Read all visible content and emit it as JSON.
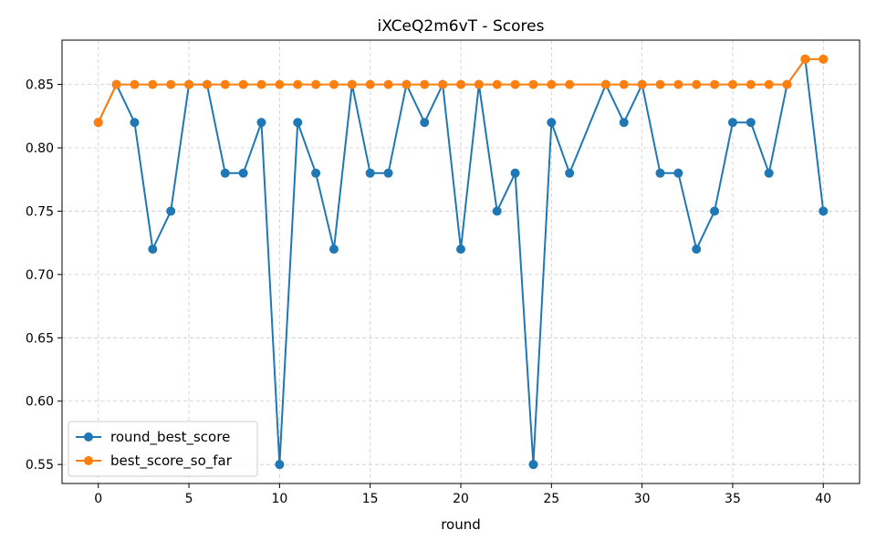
{
  "chart_data": {
    "type": "line",
    "title": "iXCeQ2m6vT - Scores",
    "xlabel": "round",
    "ylabel": "",
    "xlim": [
      -2,
      42
    ],
    "ylim": [
      0.535,
      0.885
    ],
    "xticks": [
      0,
      5,
      10,
      15,
      20,
      25,
      30,
      35,
      40
    ],
    "yticks": [
      0.55,
      0.6,
      0.65,
      0.7,
      0.75,
      0.8,
      0.85
    ],
    "xtick_labels": [
      "0",
      "5",
      "10",
      "15",
      "20",
      "25",
      "30",
      "35",
      "40"
    ],
    "ytick_labels": [
      "0.55",
      "0.60",
      "0.65",
      "0.70",
      "0.75",
      "0.80",
      "0.85"
    ],
    "grid": true,
    "legend_position": "lower-left",
    "series": [
      {
        "name": "round_best_score",
        "color": "#1f77b4",
        "marker": "circle",
        "x": [
          0,
          1,
          2,
          3,
          4,
          5,
          6,
          7,
          8,
          9,
          10,
          11,
          12,
          13,
          14,
          15,
          16,
          17,
          18,
          19,
          20,
          21,
          22,
          23,
          24,
          25,
          26,
          28,
          29,
          30,
          31,
          32,
          33,
          34,
          35,
          36,
          37,
          38,
          39,
          40
        ],
        "y": [
          0.82,
          0.85,
          0.82,
          0.72,
          0.75,
          0.85,
          0.85,
          0.78,
          0.78,
          0.82,
          0.55,
          0.82,
          0.78,
          0.72,
          0.85,
          0.78,
          0.78,
          0.85,
          0.82,
          0.85,
          0.72,
          0.85,
          0.75,
          0.78,
          0.55,
          0.82,
          0.78,
          0.85,
          0.82,
          0.85,
          0.78,
          0.78,
          0.72,
          0.75,
          0.82,
          0.82,
          0.78,
          0.85,
          0.87,
          0.75
        ]
      },
      {
        "name": "best_score_so_far",
        "color": "#ff7f0e",
        "marker": "circle",
        "x": [
          0,
          1,
          2,
          3,
          4,
          5,
          6,
          7,
          8,
          9,
          10,
          11,
          12,
          13,
          14,
          15,
          16,
          17,
          18,
          19,
          20,
          21,
          22,
          23,
          24,
          25,
          26,
          28,
          29,
          30,
          31,
          32,
          33,
          34,
          35,
          36,
          37,
          38,
          39,
          40
        ],
        "y": [
          0.82,
          0.85,
          0.85,
          0.85,
          0.85,
          0.85,
          0.85,
          0.85,
          0.85,
          0.85,
          0.85,
          0.85,
          0.85,
          0.85,
          0.85,
          0.85,
          0.85,
          0.85,
          0.85,
          0.85,
          0.85,
          0.85,
          0.85,
          0.85,
          0.85,
          0.85,
          0.85,
          0.85,
          0.85,
          0.85,
          0.85,
          0.85,
          0.85,
          0.85,
          0.85,
          0.85,
          0.85,
          0.85,
          0.87,
          0.87
        ]
      }
    ]
  }
}
